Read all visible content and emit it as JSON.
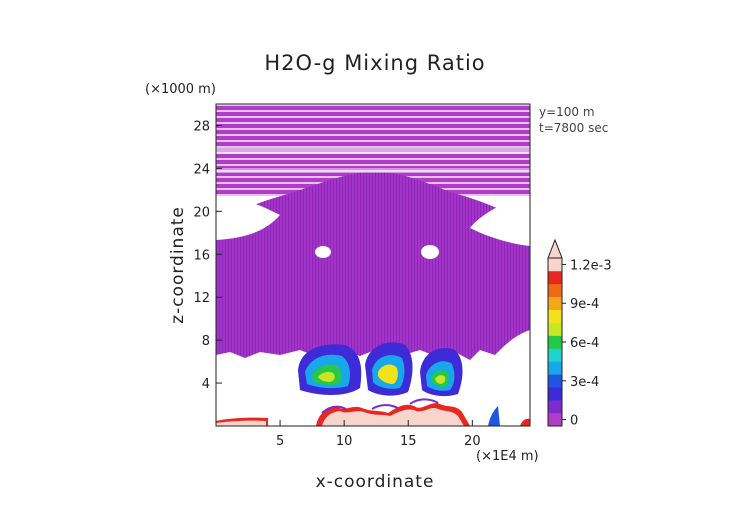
{
  "chart_data": {
    "type": "heatmap",
    "title": "H2O-g Mixing Ratio",
    "xlabel": "x-coordinate",
    "ylabel": "z-coordinate",
    "x_unit": "(×1E4 m)",
    "y_unit": "(×1000 m)",
    "annotation_lines": [
      "y=100 m",
      "t=7800 sec"
    ],
    "x_ticks": [
      5,
      10,
      15,
      20
    ],
    "y_ticks": [
      4,
      8,
      12,
      16,
      20,
      24,
      28
    ],
    "xlim": [
      0,
      24.5
    ],
    "ylim": [
      0,
      30
    ],
    "colorbar": {
      "ticks": [
        "0",
        "3e-4",
        "6e-4",
        "9e-4",
        "1.2e-3"
      ],
      "tick_values": [
        0,
        0.0003,
        0.0006,
        0.0009,
        0.0012
      ],
      "levels": [
        0,
        0.0001,
        0.0002,
        0.0003,
        0.0004,
        0.0005,
        0.0006,
        0.0007,
        0.0008,
        0.0009,
        0.001,
        0.0011,
        0.0012
      ],
      "colors": [
        "#b03cc8",
        "#7a2ccf",
        "#3c2bd6",
        "#1f55e0",
        "#17a7ea",
        "#1fd2cc",
        "#27c84a",
        "#c9e624",
        "#f2e21c",
        "#f3a81a",
        "#ef6a17",
        "#e8281e",
        "#f7d4cc"
      ],
      "extend": "max"
    },
    "regions": {
      "upper_layer_z": [
        7,
        29.5
      ],
      "upper_layer_value": 2e-05,
      "moist_cores": [
        {
          "x": [
            7,
            10.5
          ],
          "z": [
            3.5,
            7
          ]
        },
        {
          "x": [
            12,
            15.5
          ],
          "z": [
            3.5,
            7
          ]
        },
        {
          "x": [
            16.5,
            19
          ],
          "z": [
            3.5,
            7
          ]
        }
      ],
      "surface_layer_z": [
        0,
        1.5
      ]
    }
  }
}
